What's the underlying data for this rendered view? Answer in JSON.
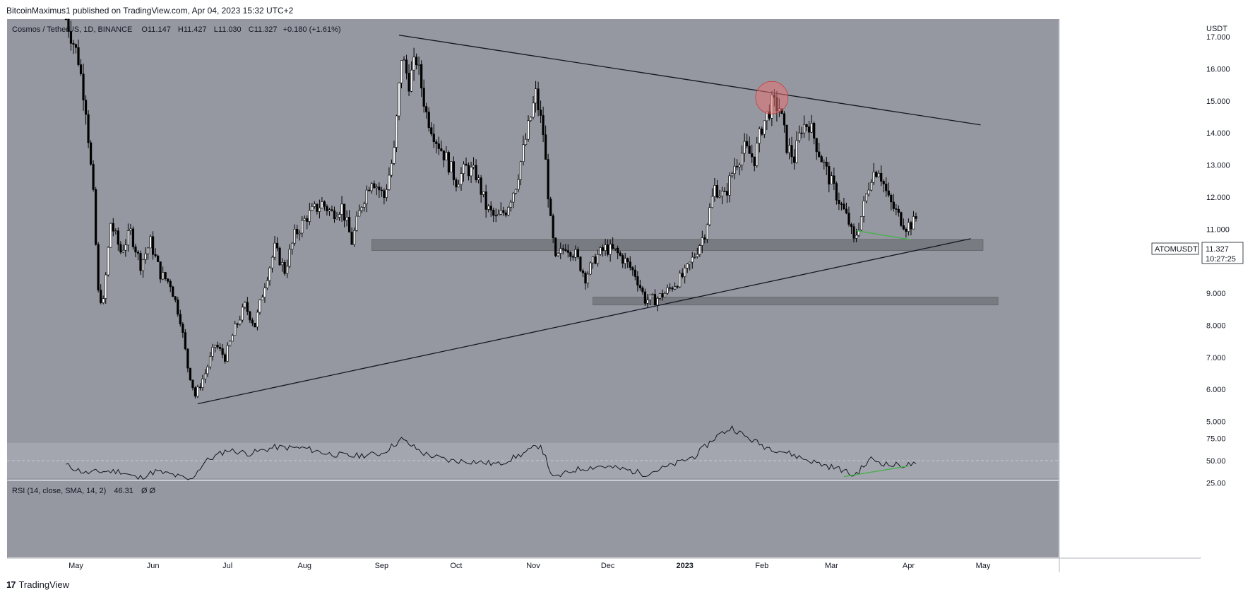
{
  "header": {
    "text": "BitcoinMaximus1 published on TradingView.com, Apr 04, 2023 15:32 UTC+2"
  },
  "footer": {
    "logo": "17",
    "brand": "TradingView"
  },
  "colors": {
    "chart_bg": "#9598a1",
    "rsi_band": "#a3a6ae",
    "zone": "#6f7278",
    "candle": "#000000",
    "green_line": "#4caf50",
    "circle": "#e57373"
  },
  "legend": {
    "symbol": "Cosmos / TetherUS, 1D, BINANCE",
    "o_label": "O",
    "o_value": "11.147",
    "h_label": "H",
    "h_value": "11.427",
    "l_label": "L",
    "l_value": "11.030",
    "c_label": "C",
    "c_value": "11.327",
    "change": "+0.180 (+1.61%)"
  },
  "price_tag": {
    "symbol": "ATOMUSDT",
    "price": "11.327",
    "countdown": "10:27:25"
  },
  "rsi": {
    "legend": "RSI (14, close, SMA, 14, 2)",
    "value": "46.31",
    "extra": "Ø  Ø"
  },
  "chart_data": {
    "type": "candlestick",
    "symbol": "Cosmos / TetherUS",
    "timeframe": "1D",
    "exchange": "BINANCE",
    "currency": "USDT",
    "y_ticks": [
      5.0,
      6.0,
      7.0,
      8.0,
      9.0,
      10.0,
      11.0,
      12.0,
      13.0,
      14.0,
      15.0,
      16.0,
      17.0
    ],
    "y_tick_labels": [
      "5.000",
      "6.000",
      "7.000",
      "8.000",
      "9.000",
      "10.000",
      "11.000",
      "12.000",
      "13.000",
      "14.000",
      "15.000",
      "16.000",
      "17.000"
    ],
    "ylim": [
      4.95,
      17.6
    ],
    "x_labels": [
      "May",
      "Jun",
      "Jul",
      "Aug",
      "Sep",
      "Oct",
      "Nov",
      "Dec",
      "2023",
      "Feb",
      "Mar",
      "Apr",
      "May"
    ],
    "x_label_dates": [
      "2022-05-01",
      "2022-06-01",
      "2022-07-01",
      "2022-08-01",
      "2022-09-01",
      "2022-10-01",
      "2022-11-01",
      "2022-12-01",
      "2023-01-01",
      "2023-02-01",
      "2023-03-01",
      "2023-04-01",
      "2023-05-01"
    ],
    "price_path": [
      [
        "2022-04-27",
        17.6
      ],
      [
        "2022-05-02",
        16.3
      ],
      [
        "2022-05-05",
        14.8
      ],
      [
        "2022-05-08",
        12.0
      ],
      [
        "2022-05-10",
        9.0
      ],
      [
        "2022-05-12",
        8.7
      ],
      [
        "2022-05-15",
        11.2
      ],
      [
        "2022-05-19",
        10.3
      ],
      [
        "2022-05-23",
        10.9
      ],
      [
        "2022-05-27",
        9.9
      ],
      [
        "2022-05-31",
        10.6
      ],
      [
        "2022-06-04",
        9.6
      ],
      [
        "2022-06-08",
        9.3
      ],
      [
        "2022-06-12",
        8.2
      ],
      [
        "2022-06-15",
        6.7
      ],
      [
        "2022-06-18",
        5.8
      ],
      [
        "2022-06-22",
        6.5
      ],
      [
        "2022-06-26",
        7.4
      ],
      [
        "2022-06-30",
        7.0
      ],
      [
        "2022-07-04",
        7.9
      ],
      [
        "2022-07-08",
        8.6
      ],
      [
        "2022-07-12",
        8.0
      ],
      [
        "2022-07-16",
        9.3
      ],
      [
        "2022-07-20",
        10.4
      ],
      [
        "2022-07-24",
        9.7
      ],
      [
        "2022-07-28",
        10.8
      ],
      [
        "2022-08-02",
        11.4
      ],
      [
        "2022-08-08",
        11.8
      ],
      [
        "2022-08-12",
        11.5
      ],
      [
        "2022-08-16",
        11.7
      ],
      [
        "2022-08-20",
        10.6
      ],
      [
        "2022-08-24",
        11.8
      ],
      [
        "2022-08-28",
        12.6
      ],
      [
        "2022-09-02",
        12.0
      ],
      [
        "2022-09-06",
        13.4
      ],
      [
        "2022-09-09",
        16.4
      ],
      [
        "2022-09-12",
        15.6
      ],
      [
        "2022-09-15",
        16.3
      ],
      [
        "2022-09-19",
        14.6
      ],
      [
        "2022-09-23",
        13.8
      ],
      [
        "2022-09-27",
        13.2
      ],
      [
        "2022-10-01",
        12.5
      ],
      [
        "2022-10-05",
        12.9
      ],
      [
        "2022-10-09",
        12.7
      ],
      [
        "2022-10-13",
        11.7
      ],
      [
        "2022-10-17",
        11.3
      ],
      [
        "2022-10-21",
        11.6
      ],
      [
        "2022-10-25",
        12.4
      ],
      [
        "2022-10-29",
        13.8
      ],
      [
        "2022-11-02",
        15.2
      ],
      [
        "2022-11-05",
        14.0
      ],
      [
        "2022-11-08",
        11.2
      ],
      [
        "2022-11-10",
        10.0
      ],
      [
        "2022-11-14",
        10.5
      ],
      [
        "2022-11-18",
        10.2
      ],
      [
        "2022-11-22",
        9.5
      ],
      [
        "2022-11-26",
        10.1
      ],
      [
        "2022-11-30",
        10.4
      ],
      [
        "2022-12-04",
        10.3
      ],
      [
        "2022-12-08",
        10.0
      ],
      [
        "2022-12-12",
        9.6
      ],
      [
        "2022-12-16",
        8.8
      ],
      [
        "2022-12-20",
        8.8
      ],
      [
        "2022-12-24",
        9.0
      ],
      [
        "2022-12-28",
        9.3
      ],
      [
        "2023-01-01",
        9.6
      ],
      [
        "2023-01-05",
        10.2
      ],
      [
        "2023-01-09",
        10.9
      ],
      [
        "2023-01-13",
        12.3
      ],
      [
        "2023-01-17",
        12.0
      ],
      [
        "2023-01-21",
        13.0
      ],
      [
        "2023-01-25",
        13.5
      ],
      [
        "2023-01-29",
        13.2
      ],
      [
        "2023-02-01",
        14.2
      ],
      [
        "2023-02-05",
        14.9
      ],
      [
        "2023-02-08",
        14.8
      ],
      [
        "2023-02-11",
        13.6
      ],
      [
        "2023-02-14",
        13.2
      ],
      [
        "2023-02-17",
        14.2
      ],
      [
        "2023-02-20",
        14.3
      ],
      [
        "2023-02-24",
        13.4
      ],
      [
        "2023-02-28",
        12.6
      ],
      [
        "2023-03-04",
        11.9
      ],
      [
        "2023-03-08",
        11.2
      ],
      [
        "2023-03-10",
        10.6
      ],
      [
        "2023-03-13",
        11.4
      ],
      [
        "2023-03-17",
        12.7
      ],
      [
        "2023-03-20",
        12.9
      ],
      [
        "2023-03-24",
        11.9
      ],
      [
        "2023-03-28",
        11.4
      ],
      [
        "2023-03-31",
        11.1
      ],
      [
        "2023-04-03",
        11.2
      ],
      [
        "2023-04-04",
        11.327
      ]
    ],
    "drawings": {
      "upper_trendline": [
        [
          "2022-09-08",
          17.05
        ],
        [
          "2023-04-30",
          14.25
        ]
      ],
      "lower_trendline": [
        [
          "2022-06-19",
          5.55
        ],
        [
          "2023-04-26",
          10.7
        ]
      ],
      "support_zone_upper": {
        "from": "2022-08-28",
        "to": "2023-05-01",
        "low": 10.33,
        "high": 10.68
      },
      "support_zone_lower": {
        "from": "2022-11-25",
        "to": "2023-05-07",
        "low": 8.63,
        "high": 8.88
      },
      "bullish_divergence_price": [
        [
          "2023-03-11",
          10.95
        ],
        [
          "2023-04-02",
          10.67
        ]
      ],
      "rejection_circle": {
        "date": "2023-02-05",
        "price": 15.1
      }
    }
  },
  "rsi_data": {
    "y_ticks": [
      25,
      50,
      75
    ],
    "y_tick_labels": [
      "25.00",
      "50.00",
      "75.00"
    ],
    "ylim": [
      20,
      94
    ],
    "band": [
      30,
      70
    ],
    "path": [
      [
        "2022-04-27",
        45
      ],
      [
        "2022-05-05",
        36
      ],
      [
        "2022-05-12",
        38
      ],
      [
        "2022-05-19",
        38
      ],
      [
        "2022-05-26",
        30
      ],
      [
        "2022-06-02",
        38
      ],
      [
        "2022-06-09",
        34
      ],
      [
        "2022-06-16",
        28
      ],
      [
        "2022-06-22",
        49
      ],
      [
        "2022-07-01",
        62
      ],
      [
        "2022-07-10",
        58
      ],
      [
        "2022-07-20",
        65
      ],
      [
        "2022-08-01",
        64
      ],
      [
        "2022-08-10",
        58
      ],
      [
        "2022-08-20",
        55
      ],
      [
        "2022-09-01",
        58
      ],
      [
        "2022-09-09",
        74
      ],
      [
        "2022-09-18",
        58
      ],
      [
        "2022-09-28",
        50
      ],
      [
        "2022-10-08",
        49
      ],
      [
        "2022-10-18",
        46
      ],
      [
        "2022-10-28",
        58
      ],
      [
        "2022-11-04",
        68
      ],
      [
        "2022-11-09",
        30
      ],
      [
        "2022-11-18",
        40
      ],
      [
        "2022-11-28",
        44
      ],
      [
        "2022-12-08",
        40
      ],
      [
        "2022-12-16",
        35
      ],
      [
        "2022-12-26",
        44
      ],
      [
        "2023-01-05",
        55
      ],
      [
        "2023-01-14",
        78
      ],
      [
        "2023-01-20",
        87
      ],
      [
        "2023-01-26",
        76
      ],
      [
        "2023-02-02",
        66
      ],
      [
        "2023-02-10",
        60
      ],
      [
        "2023-02-18",
        52
      ],
      [
        "2023-02-26",
        45
      ],
      [
        "2023-03-05",
        40
      ],
      [
        "2023-03-10",
        33
      ],
      [
        "2023-03-17",
        52
      ],
      [
        "2023-03-24",
        45
      ],
      [
        "2023-03-31",
        45
      ],
      [
        "2023-04-04",
        46.31
      ]
    ],
    "divergence_line": [
      [
        "2023-03-06",
        32
      ],
      [
        "2023-04-01",
        44
      ]
    ]
  }
}
